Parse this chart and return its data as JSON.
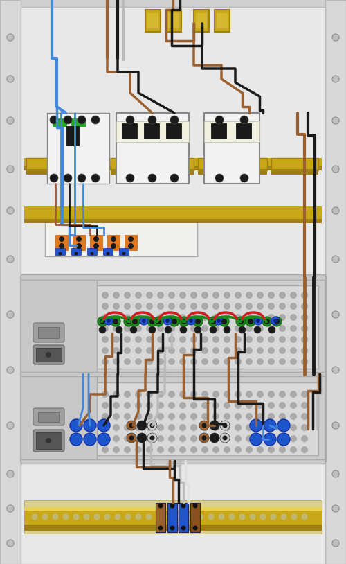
{
  "bg_color": "#d0d0d0",
  "rack_side_color": "#d8d8d8",
  "panel_light": "#e8e8e8",
  "panel_mid": "#dadada",
  "breaker_white": "#f2f2f2",
  "breaker_cream": "#f0f0e0",
  "gold": "#c8a818",
  "gold_dark": "#a08010",
  "gold_side": "#b89018",
  "wire_brown": "#9B6030",
  "wire_black": "#1a1a1a",
  "wire_blue": "#4488dd",
  "wire_gray": "#bbbbbb",
  "wire_white": "#e8e8e8",
  "wire_green": "#1a8a1a",
  "wire_red": "#cc2020",
  "green_ind": "#22aa22",
  "orange_conn": "#e07820",
  "blue_conn": "#2255cc",
  "brown_conn": "#8B5020",
  "dot_gray": "#aaaaaa",
  "left_panel_dark": "#b8b8b8",
  "ps_frame": "#cccccc",
  "hole_gray": "#c0c0c0"
}
